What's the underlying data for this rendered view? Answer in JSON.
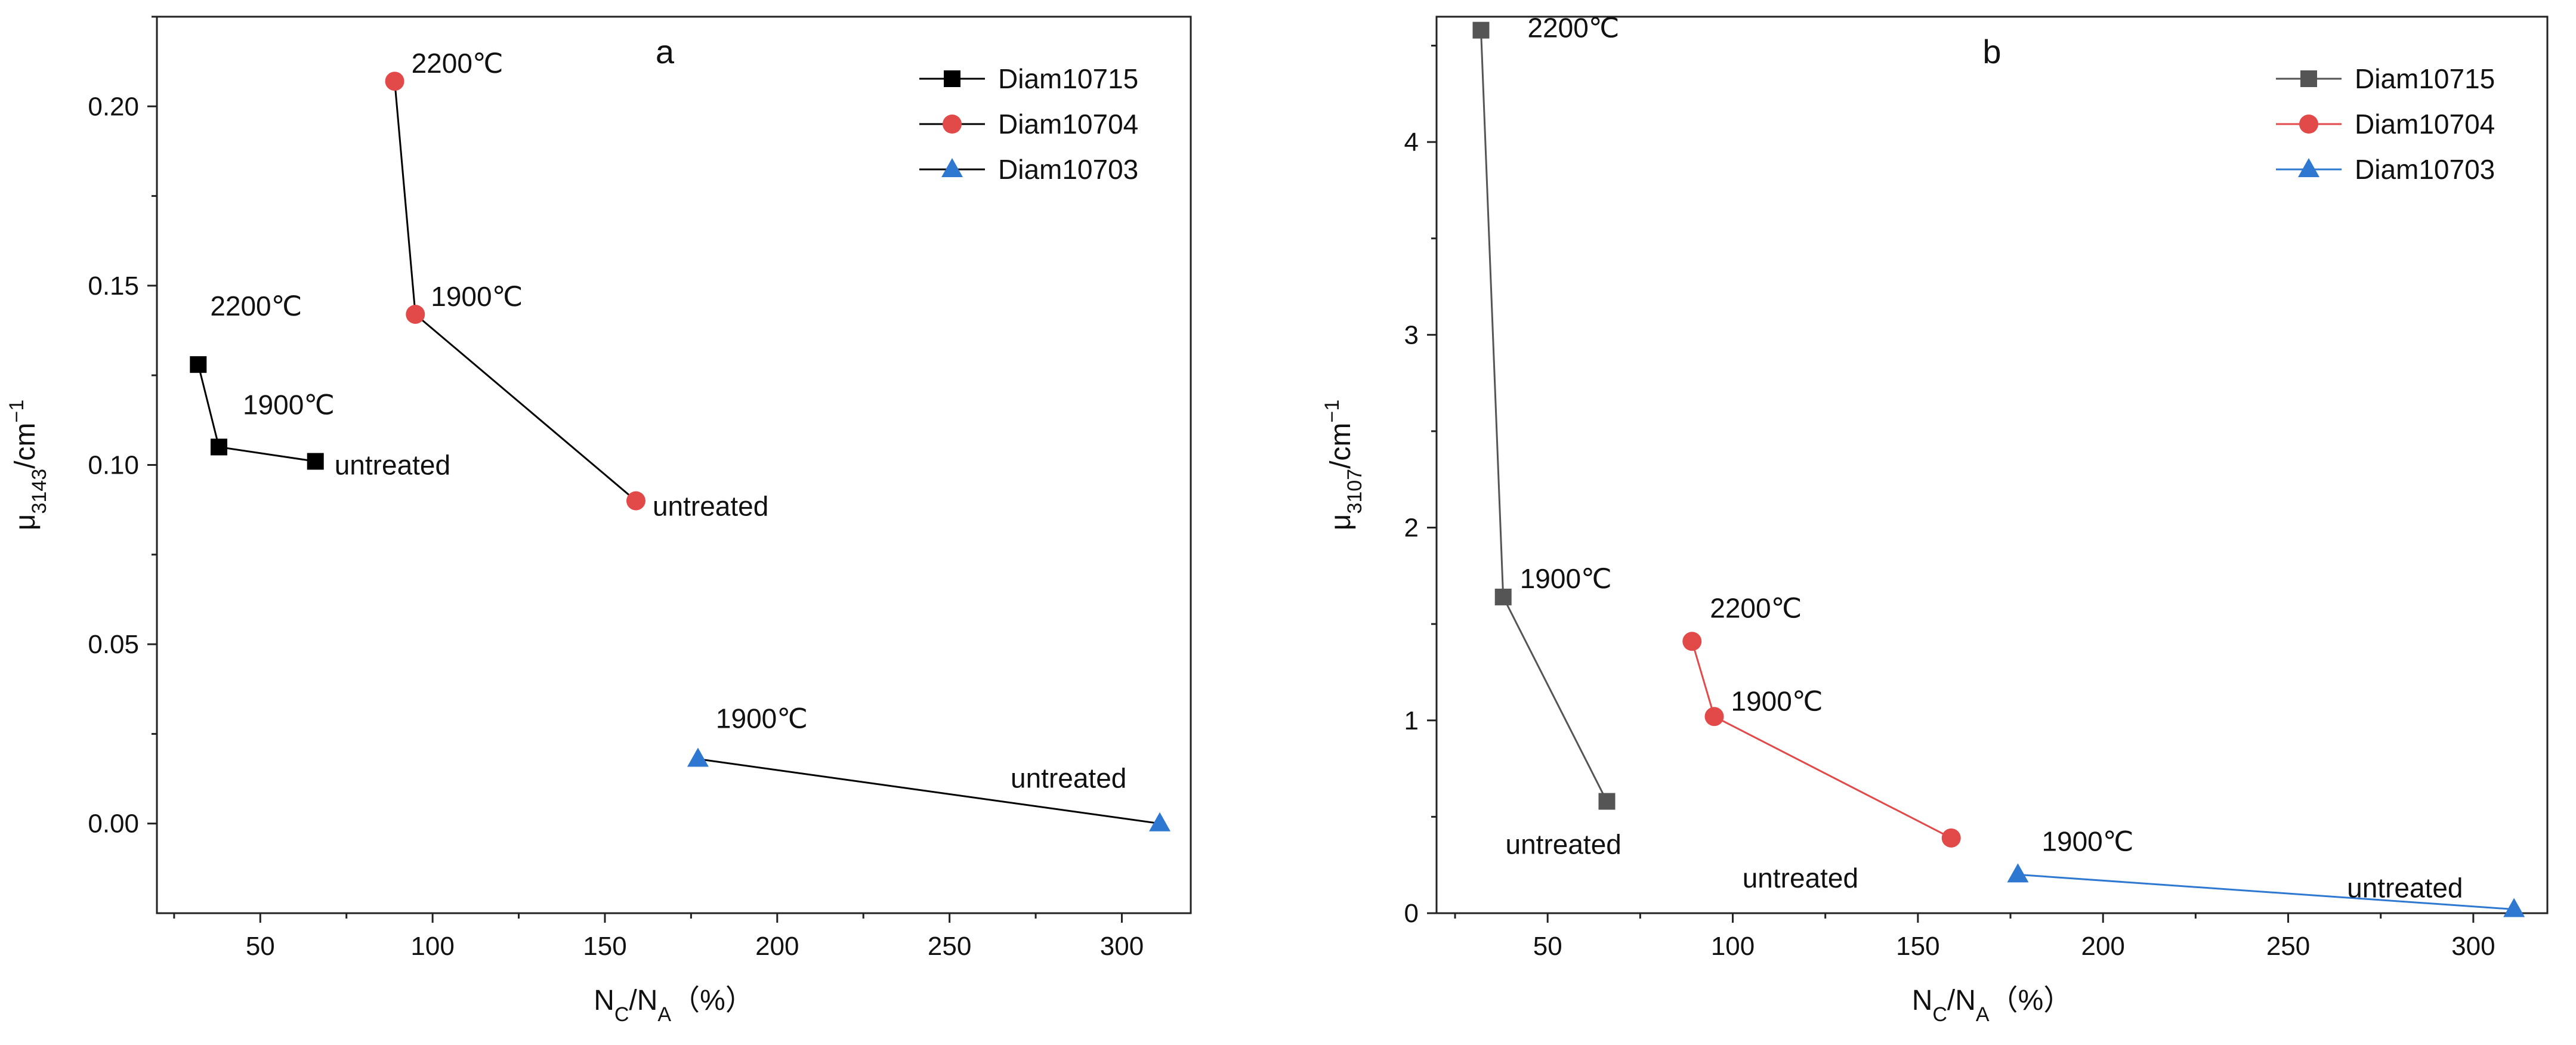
{
  "chart_data": [
    {
      "type": "line",
      "panel_label": "a",
      "xlabel": {
        "main": "N",
        "sub1": "C",
        "slash": "/N",
        "sub2": "A",
        "unit": "（%）"
      },
      "ylabel": {
        "main": "μ",
        "sub": "3143",
        "unit": "/cm",
        "sup": "−1"
      },
      "xlim": [
        20,
        320
      ],
      "ylim": [
        -0.025,
        0.225
      ],
      "xticks": [
        50,
        100,
        150,
        200,
        250,
        300
      ],
      "xtick_labels": [
        "50",
        "100",
        "150",
        "200",
        "250",
        "300"
      ],
      "yticks": [
        0,
        0.05,
        0.1,
        0.15,
        0.2
      ],
      "ytick_labels": [
        "0.00",
        "0.05",
        "0.10",
        "0.15",
        "0.20"
      ],
      "legend_position": "top-right",
      "series": [
        {
          "name": "Diam10715",
          "marker": "square",
          "color": "#000000",
          "line_color": "#000000",
          "x": [
            32,
            38,
            66
          ],
          "y": [
            0.128,
            0.105,
            0.101
          ],
          "labels": [
            "2200℃",
            "1900℃",
            "untreated"
          ]
        },
        {
          "name": "Diam10704",
          "marker": "circle",
          "color": "#e24a4a",
          "line_color": "#000000",
          "x": [
            89,
            95,
            159
          ],
          "y": [
            0.207,
            0.142,
            0.09
          ],
          "labels": [
            "2200℃",
            "1900℃",
            "untreated"
          ]
        },
        {
          "name": "Diam10703",
          "marker": "triangle",
          "color": "#2f78d2",
          "line_color": "#000000",
          "x": [
            177,
            311
          ],
          "y": [
            0.018,
            0.0
          ],
          "labels": [
            "1900℃",
            "untreated"
          ]
        }
      ]
    },
    {
      "type": "line",
      "panel_label": "b",
      "xlabel": {
        "main": "N",
        "sub1": "C",
        "slash": "/N",
        "sub2": "A",
        "unit": "（%）"
      },
      "ylabel": {
        "main": "μ",
        "sub": "3107",
        "unit": "/cm",
        "sup": "−1"
      },
      "xlim": [
        20,
        320
      ],
      "ylim": [
        0,
        4.65
      ],
      "xticks": [
        50,
        100,
        150,
        200,
        250,
        300
      ],
      "xtick_labels": [
        "50",
        "100",
        "150",
        "200",
        "250",
        "300"
      ],
      "yticks": [
        0,
        1,
        2,
        3,
        4
      ],
      "ytick_labels": [
        "0",
        "1",
        "2",
        "3",
        "4"
      ],
      "legend_position": "top-right",
      "series": [
        {
          "name": "Diam10715",
          "marker": "square",
          "color": "#555555",
          "line_color": "#555555",
          "x": [
            32,
            38,
            66
          ],
          "y": [
            4.58,
            1.64,
            0.58
          ],
          "labels": [
            "2200℃",
            "1900℃",
            "untreated"
          ]
        },
        {
          "name": "Diam10704",
          "marker": "circle",
          "color": "#e24a4a",
          "line_color": "#e24a4a",
          "x": [
            89,
            95,
            159
          ],
          "y": [
            1.41,
            1.02,
            0.39
          ],
          "labels": [
            "2200℃",
            "1900℃",
            "untreated"
          ]
        },
        {
          "name": "Diam10703",
          "marker": "triangle",
          "color": "#2f78d2",
          "line_color": "#2f78d2",
          "x": [
            177,
            311
          ],
          "y": [
            0.2,
            0.02
          ],
          "labels": [
            "1900℃",
            "untreated"
          ]
        }
      ]
    }
  ]
}
